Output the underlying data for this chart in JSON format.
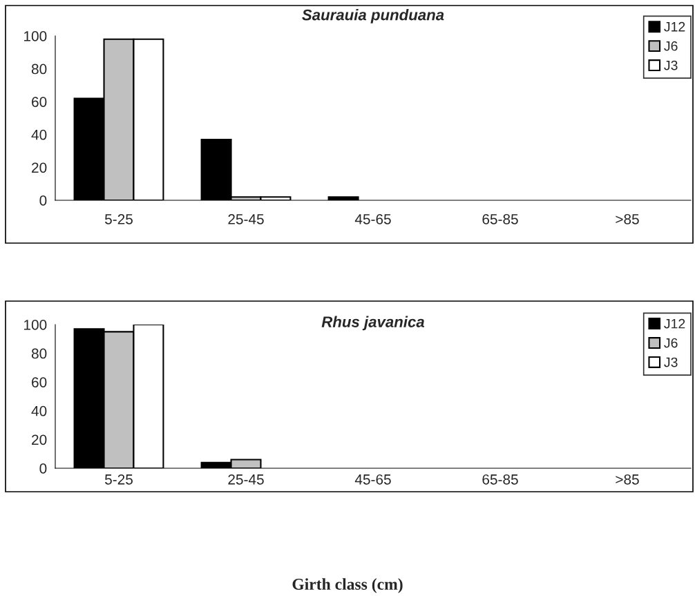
{
  "chart_data": [
    {
      "type": "bar",
      "title": "Saurauia punduana",
      "categories": [
        "5-25",
        "25-45",
        "45-65",
        "65-85",
        ">85"
      ],
      "ylim": [
        0,
        100
      ],
      "yticks": [
        0,
        20,
        40,
        60,
        80,
        100
      ],
      "legend": "top right",
      "grid": false,
      "series": [
        {
          "name": "J12",
          "color": "#000000",
          "values": [
            62,
            37,
            2,
            0,
            0
          ]
        },
        {
          "name": "J6",
          "color": "#c0c0c0",
          "values": [
            98,
            2,
            0,
            0,
            0
          ]
        },
        {
          "name": "J3",
          "color": "#ffffff",
          "values": [
            98,
            2,
            0,
            0,
            0
          ]
        }
      ]
    },
    {
      "type": "bar",
      "title": "Rhus javanica",
      "xlabel": "Girth class (cm)",
      "categories": [
        "5-25",
        "25-45",
        "45-65",
        "65-85",
        ">85"
      ],
      "ylim": [
        0,
        100
      ],
      "yticks": [
        0,
        20,
        40,
        60,
        80,
        100
      ],
      "legend": "top right",
      "grid": false,
      "series": [
        {
          "name": "J12",
          "color": "#000000",
          "values": [
            97,
            4,
            0,
            0,
            0
          ]
        },
        {
          "name": "J6",
          "color": "#c0c0c0",
          "values": [
            95,
            6,
            0,
            0,
            0
          ]
        },
        {
          "name": "J3",
          "color": "#ffffff",
          "values": [
            100,
            0,
            0,
            0,
            0
          ]
        }
      ]
    }
  ]
}
